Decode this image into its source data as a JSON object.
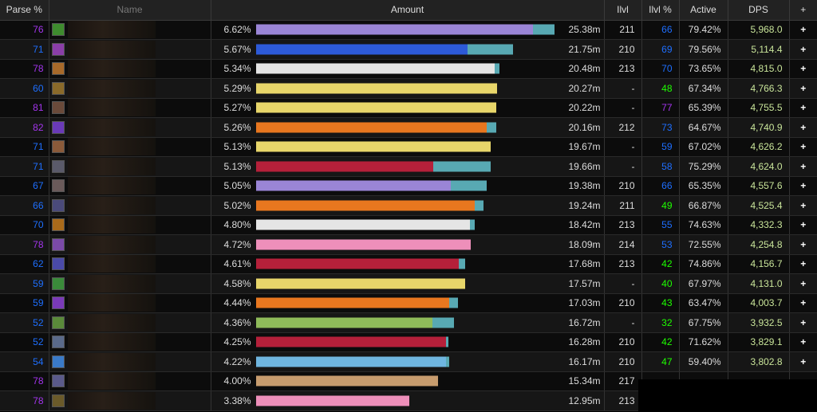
{
  "headers": {
    "parse": "Parse %",
    "name": "Name",
    "amount": "Amount",
    "ilvl": "Ilvl",
    "ilvl_pct": "Ilvl %",
    "active": "Active",
    "dps": "DPS",
    "add": "+"
  },
  "colors": {
    "purple": "#a335ee",
    "blue": "#1e6fff",
    "green": "#1eff00",
    "dps_text": "#c9e59a",
    "extra_bar": "#58a9b3"
  },
  "rows": [
    {
      "parse": "76",
      "parse_q": "purple",
      "icon_color": "#3e8b2e",
      "pct": "6.62%",
      "main": 0.925,
      "extra": 0.071,
      "bar_color": "#9a85d6",
      "amount": "25.38m",
      "ilvl": "211",
      "ilvl_pct": "66",
      "ilvl_q": "blue",
      "active": "79.42%",
      "dps": "5,968.0",
      "add": "+"
    },
    {
      "parse": "71",
      "parse_q": "blue",
      "icon_color": "#8a3ea8",
      "pct": "5.67%",
      "main": 0.705,
      "extra": 0.152,
      "bar_color": "#2d5ad8",
      "amount": "21.75m",
      "ilvl": "210",
      "ilvl_pct": "69",
      "ilvl_q": "blue",
      "active": "79.56%",
      "dps": "5,114.4",
      "add": "+"
    },
    {
      "parse": "78",
      "parse_q": "purple",
      "icon_color": "#a86a2a",
      "pct": "5.34%",
      "main": 0.797,
      "extra": 0.016,
      "bar_color": "#e5e5e5",
      "amount": "20.48m",
      "ilvl": "213",
      "ilvl_pct": "70",
      "ilvl_q": "blue",
      "active": "73.65%",
      "dps": "4,815.0",
      "add": "+"
    },
    {
      "parse": "60",
      "parse_q": "blue",
      "icon_color": "#8a6a2a",
      "pct": "5.29%",
      "main": 0.805,
      "extra": 0.0,
      "bar_color": "#e8d66a",
      "amount": "20.27m",
      "ilvl": "-",
      "ilvl_pct": "48",
      "ilvl_q": "green",
      "active": "67.34%",
      "dps": "4,766.3",
      "add": "+"
    },
    {
      "parse": "81",
      "parse_q": "purple",
      "icon_color": "#6a4a3a",
      "pct": "5.27%",
      "main": 0.803,
      "extra": 0.0,
      "bar_color": "#e8d66a",
      "amount": "20.22m",
      "ilvl": "-",
      "ilvl_pct": "77",
      "ilvl_q": "purple",
      "active": "65.39%",
      "dps": "4,755.5",
      "add": "+"
    },
    {
      "parse": "82",
      "parse_q": "purple",
      "icon_color": "#6a3ab8",
      "pct": "5.26%",
      "main": 0.77,
      "extra": 0.032,
      "bar_color": "#e8771f",
      "amount": "20.16m",
      "ilvl": "212",
      "ilvl_pct": "73",
      "ilvl_q": "blue",
      "active": "64.67%",
      "dps": "4,740.9",
      "add": "+"
    },
    {
      "parse": "71",
      "parse_q": "blue",
      "icon_color": "#8a5a3a",
      "pct": "5.13%",
      "main": 0.782,
      "extra": 0.0,
      "bar_color": "#e8d66a",
      "amount": "19.67m",
      "ilvl": "-",
      "ilvl_pct": "59",
      "ilvl_q": "blue",
      "active": "67.02%",
      "dps": "4,626.2",
      "add": "+"
    },
    {
      "parse": "71",
      "parse_q": "blue",
      "icon_color": "#5a5a6a",
      "pct": "5.13%",
      "main": 0.593,
      "extra": 0.189,
      "bar_color": "#b5203a",
      "amount": "19.66m",
      "ilvl": "-",
      "ilvl_pct": "58",
      "ilvl_q": "blue",
      "active": "75.29%",
      "dps": "4,624.0",
      "add": "+"
    },
    {
      "parse": "67",
      "parse_q": "blue",
      "icon_color": "#6a5a5a",
      "pct": "5.05%",
      "main": 0.649,
      "extra": 0.122,
      "bar_color": "#9a85d6",
      "amount": "19.38m",
      "ilvl": "210",
      "ilvl_pct": "66",
      "ilvl_q": "blue",
      "active": "65.35%",
      "dps": "4,557.6",
      "add": "+"
    },
    {
      "parse": "66",
      "parse_q": "blue",
      "icon_color": "#4a4a7a",
      "pct": "5.02%",
      "main": 0.731,
      "extra": 0.029,
      "bar_color": "#e8771f",
      "amount": "19.24m",
      "ilvl": "211",
      "ilvl_pct": "49",
      "ilvl_q": "green",
      "active": "66.87%",
      "dps": "4,525.4",
      "add": "+"
    },
    {
      "parse": "70",
      "parse_q": "blue",
      "icon_color": "#a86a1a",
      "pct": "4.80%",
      "main": 0.715,
      "extra": 0.016,
      "bar_color": "#e5e5e5",
      "amount": "18.42m",
      "ilvl": "213",
      "ilvl_pct": "55",
      "ilvl_q": "blue",
      "active": "74.63%",
      "dps": "4,332.3",
      "add": "+"
    },
    {
      "parse": "78",
      "parse_q": "purple",
      "icon_color": "#7a4aa8",
      "pct": "4.72%",
      "main": 0.718,
      "extra": 0.0,
      "bar_color": "#ee8fba",
      "amount": "18.09m",
      "ilvl": "214",
      "ilvl_pct": "53",
      "ilvl_q": "blue",
      "active": "72.55%",
      "dps": "4,254.8",
      "add": "+"
    },
    {
      "parse": "62",
      "parse_q": "blue",
      "icon_color": "#4a4aa8",
      "pct": "4.61%",
      "main": 0.678,
      "extra": 0.019,
      "bar_color": "#b5203a",
      "amount": "17.68m",
      "ilvl": "213",
      "ilvl_pct": "42",
      "ilvl_q": "green",
      "active": "74.86%",
      "dps": "4,156.7",
      "add": "+"
    },
    {
      "parse": "59",
      "parse_q": "blue",
      "icon_color": "#3a8a3a",
      "pct": "4.58%",
      "main": 0.697,
      "extra": 0.0,
      "bar_color": "#e8d66a",
      "amount": "17.57m",
      "ilvl": "-",
      "ilvl_pct": "40",
      "ilvl_q": "green",
      "active": "67.97%",
      "dps": "4,131.0",
      "add": "+"
    },
    {
      "parse": "59",
      "parse_q": "blue",
      "icon_color": "#7a3ab8",
      "pct": "4.44%",
      "main": 0.644,
      "extra": 0.029,
      "bar_color": "#e8771f",
      "amount": "17.03m",
      "ilvl": "210",
      "ilvl_pct": "43",
      "ilvl_q": "green",
      "active": "63.47%",
      "dps": "4,003.7",
      "add": "+"
    },
    {
      "parse": "52",
      "parse_q": "blue",
      "icon_color": "#5a8a3a",
      "pct": "4.36%",
      "main": 0.588,
      "extra": 0.074,
      "bar_color": "#8fbb5a",
      "amount": "16.72m",
      "ilvl": "-",
      "ilvl_pct": "32",
      "ilvl_q": "green",
      "active": "67.75%",
      "dps": "3,932.5",
      "add": "+"
    },
    {
      "parse": "52",
      "parse_q": "blue",
      "icon_color": "#5a6a8a",
      "pct": "4.25%",
      "main": 0.633,
      "extra": 0.008,
      "bar_color": "#b5203a",
      "amount": "16.28m",
      "ilvl": "210",
      "ilvl_pct": "42",
      "ilvl_q": "green",
      "active": "71.62%",
      "dps": "3,829.1",
      "add": "+"
    },
    {
      "parse": "54",
      "parse_q": "blue",
      "icon_color": "#3a7ac8",
      "pct": "4.22%",
      "main": 0.633,
      "extra": 0.011,
      "bar_color": "#6fb6e0",
      "amount": "16.17m",
      "ilvl": "210",
      "ilvl_pct": "47",
      "ilvl_q": "green",
      "active": "59.40%",
      "dps": "3,802.8",
      "add": "+"
    },
    {
      "parse": "78",
      "parse_q": "purple",
      "icon_color": "#5a5a8a",
      "pct": "4.00%",
      "main": 0.609,
      "extra": 0.0,
      "bar_color": "#c79c6e",
      "amount": "15.34m",
      "ilvl": "217",
      "ilvl_pct": "",
      "ilvl_q": "blue",
      "active": "",
      "dps": "",
      "add": ""
    },
    {
      "parse": "78",
      "parse_q": "purple",
      "icon_color": "#6a5a2a",
      "pct": "3.38%",
      "main": 0.513,
      "extra": 0.0,
      "bar_color": "#ee8fba",
      "amount": "12.95m",
      "ilvl": "213",
      "ilvl_pct": "",
      "ilvl_q": "blue",
      "active": "",
      "dps": "",
      "add": ""
    }
  ]
}
